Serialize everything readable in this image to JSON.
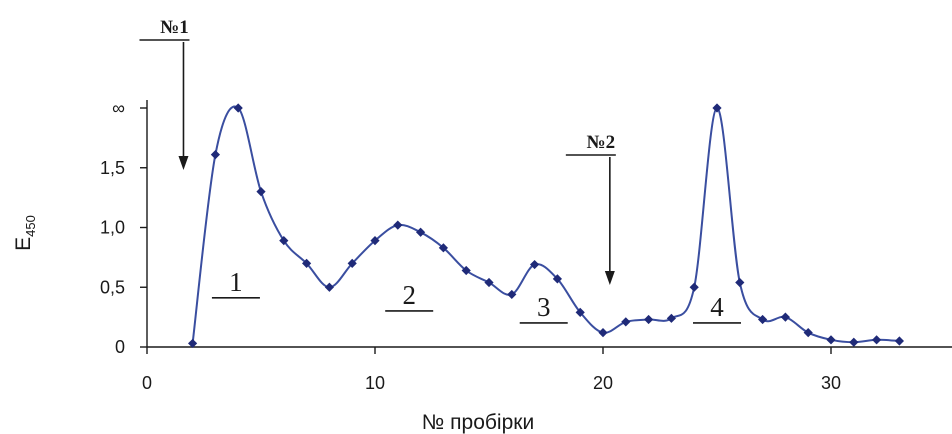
{
  "chart_data": {
    "type": "line",
    "title": "",
    "xlabel": "№ пробірки",
    "ylabel": "E",
    "ylabel_subscript": "450",
    "xlim": [
      0,
      35
    ],
    "ylim": [
      0,
      2
    ],
    "xticks": [
      0,
      10,
      20,
      30
    ],
    "xtick_labels": [
      "0",
      "10",
      "20",
      "30"
    ],
    "yticks": [
      0,
      0.5,
      1.0,
      1.5,
      2.0
    ],
    "ytick_labels": [
      "0",
      "0,5",
      "1,0",
      "1,5",
      "∞"
    ],
    "grid": false,
    "line_color": "#3a4ea0",
    "marker_color": "#1f2a78",
    "series": [
      {
        "x": [
          2,
          3,
          4,
          5,
          6,
          7,
          8,
          9,
          10,
          11,
          12,
          13,
          14,
          15,
          16,
          17,
          18,
          19,
          20,
          21,
          22,
          23,
          24,
          25,
          26,
          27,
          28,
          29,
          30,
          31,
          32,
          33
        ],
        "values": [
          0.03,
          1.61,
          2.0,
          1.3,
          0.89,
          0.7,
          0.5,
          0.7,
          0.89,
          1.02,
          0.96,
          0.83,
          0.64,
          0.54,
          0.44,
          0.69,
          0.57,
          0.29,
          0.12,
          0.21,
          0.23,
          0.24,
          0.5,
          2.0,
          0.54,
          0.23,
          0.25,
          0.12,
          0.06,
          0.04,
          0.06,
          0.05
        ]
      }
    ],
    "peak_labels": [
      {
        "text": "1",
        "x": 3.9,
        "y": 0.47
      },
      {
        "text": "2",
        "x": 11.5,
        "y": 0.36
      },
      {
        "text": "3",
        "x": 17.4,
        "y": 0.26
      },
      {
        "text": "4",
        "x": 25.0,
        "y": 0.26
      }
    ],
    "markers": [
      {
        "text": "№1",
        "x": 1.6
      },
      {
        "text": "№2",
        "x": 20.3
      }
    ]
  }
}
